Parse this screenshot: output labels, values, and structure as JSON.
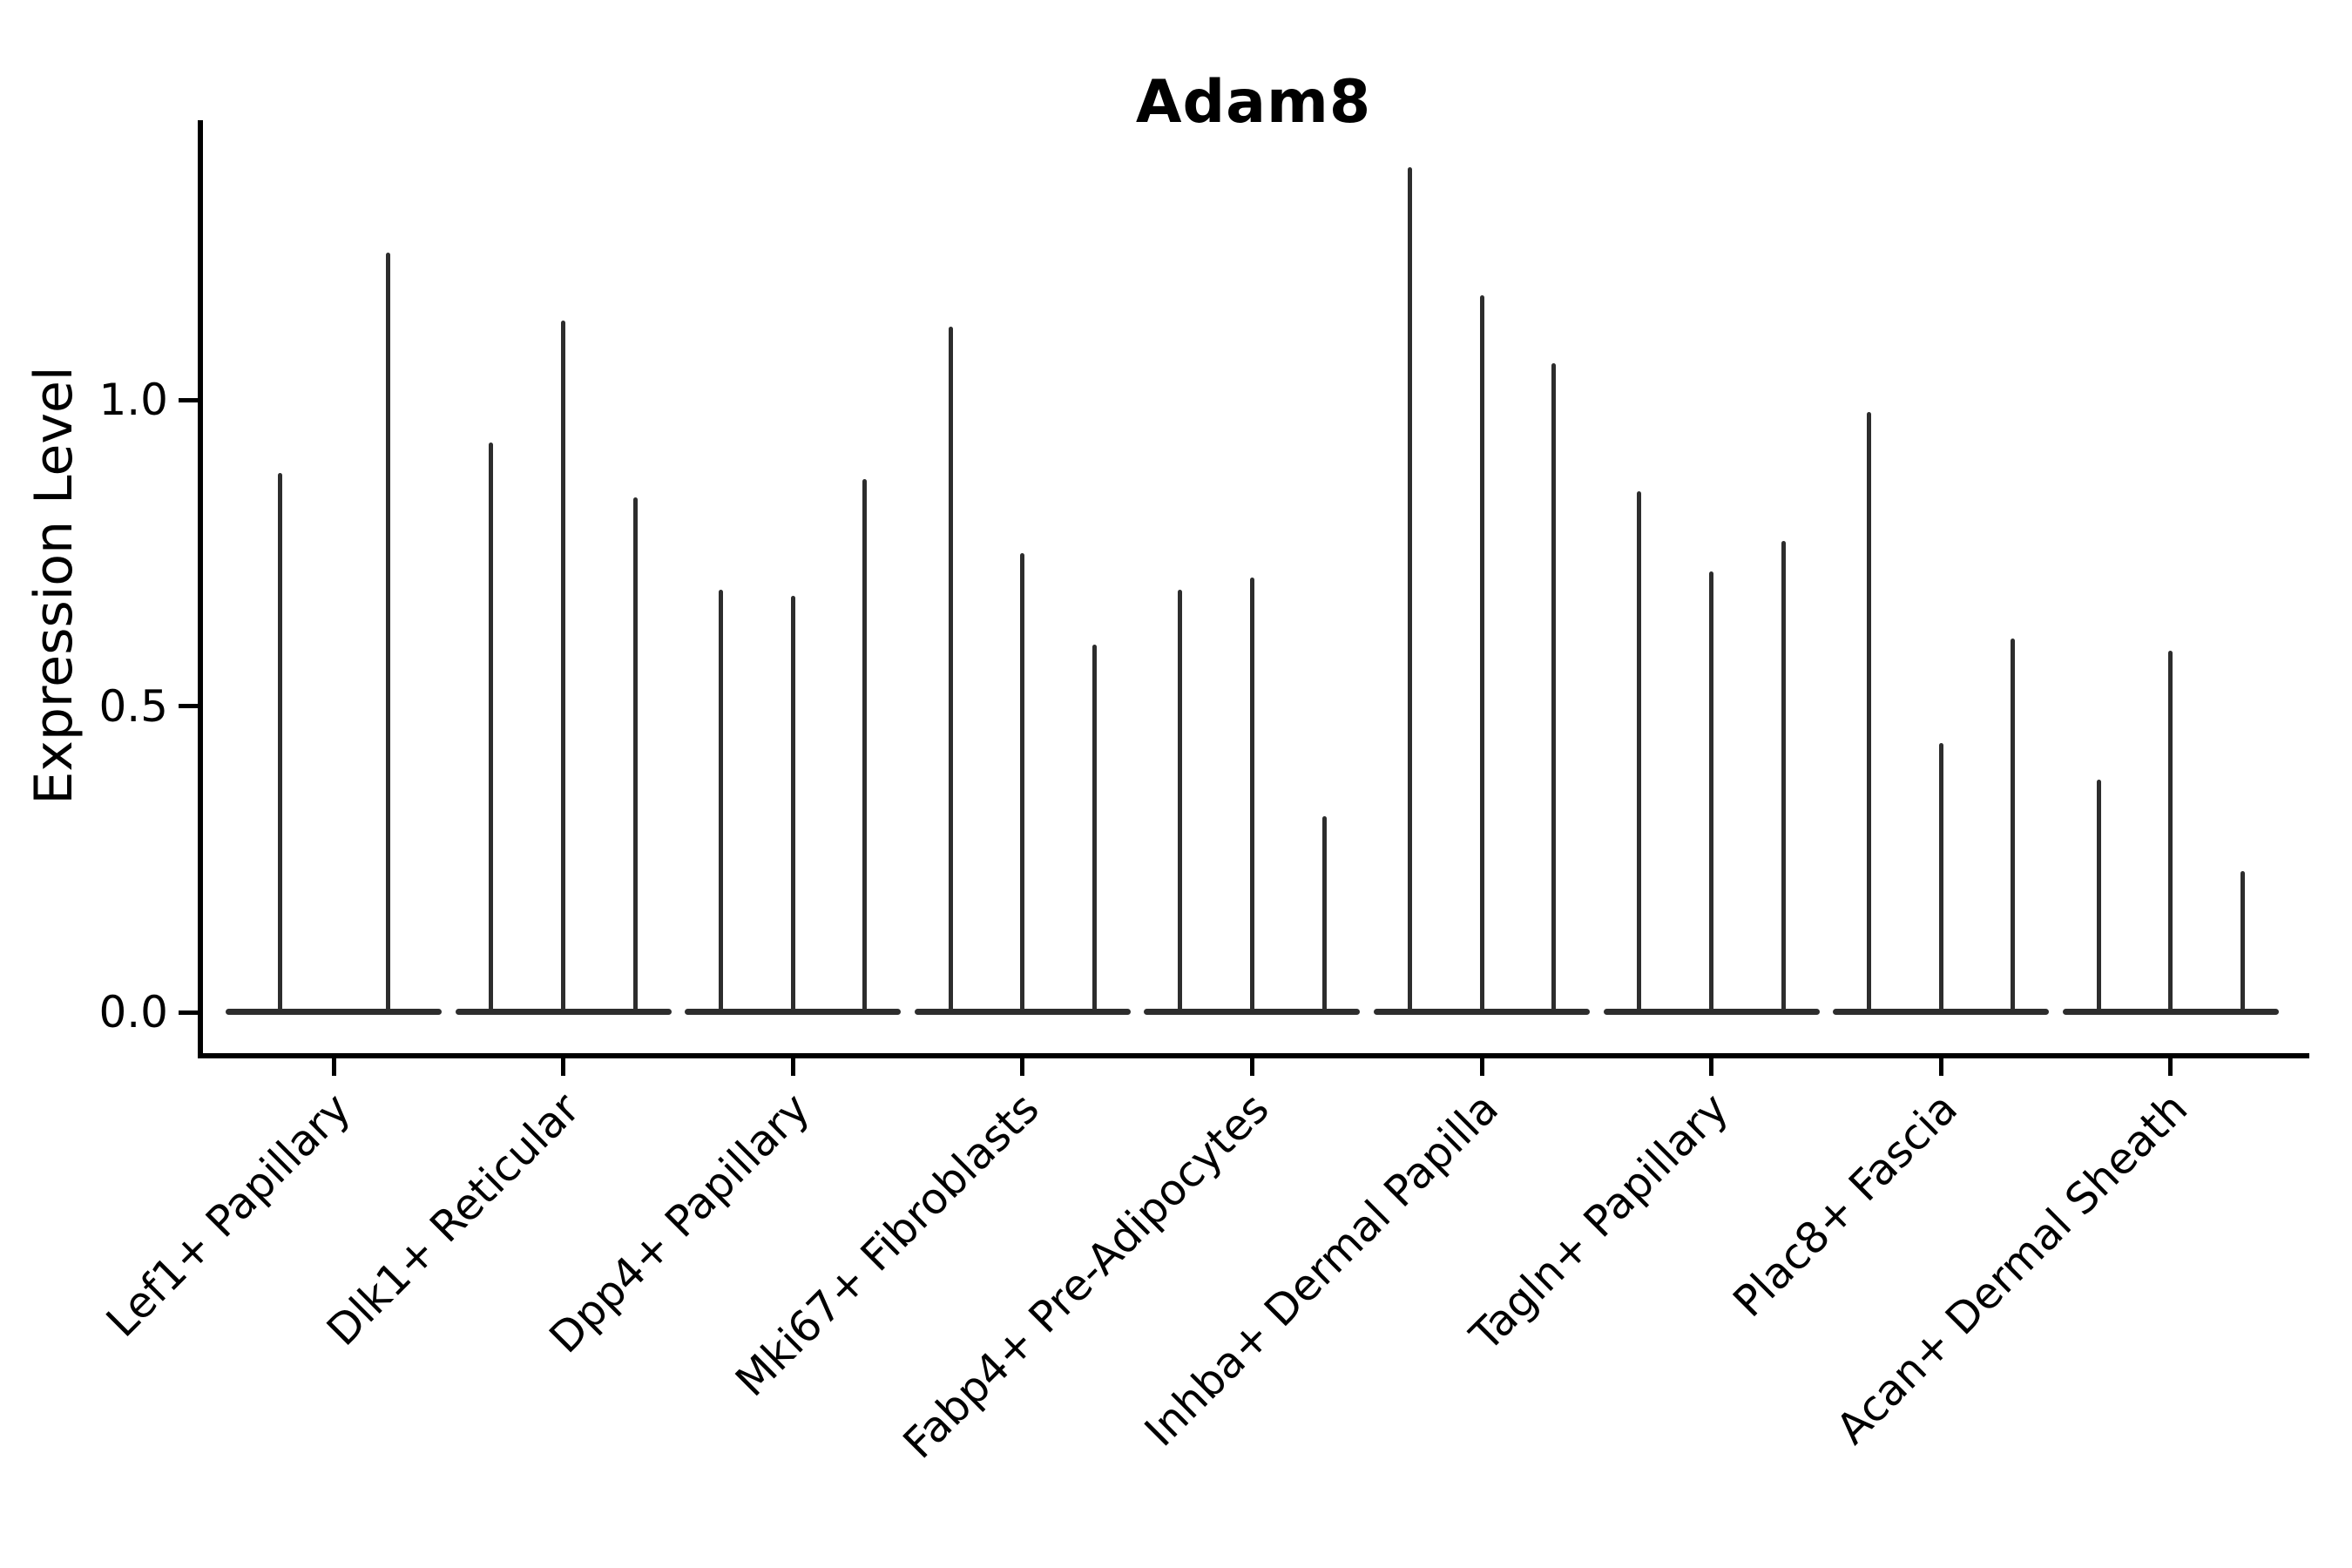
{
  "title": "Adam8",
  "y_axis": {
    "label": "Expression Level",
    "tick_labels": [
      "0.0",
      "0.5",
      "1.0"
    ]
  },
  "colors": {
    "violin": "#2d2d2d",
    "axis": "#000000",
    "text": "#000000"
  },
  "chart_data": {
    "type": "violin",
    "title": "Adam8",
    "xlabel": "",
    "ylabel": "Expression Level",
    "ylim": [
      -0.07,
      1.45
    ],
    "yticks": [
      0.0,
      0.5,
      1.0
    ],
    "grid": false,
    "legend": false,
    "orientation": "vertical",
    "description": "Narrow spike-shaped violins; each violin has its mass at 0 with a thin spike rising to its maximum expression value.",
    "categories": [
      "Lef1+ Papillary",
      "Dlk1+ Reticular",
      "Dpp4+ Papillary",
      "Mki67+ Fibroblasts",
      "Fabp4+ Pre-Adipocytes",
      "Inhba+ Dermal Papilla",
      "Tagln+ Papillary",
      "Plac8+ Fascia",
      "Acan+ Dermal Sheath"
    ],
    "groups": [
      {
        "category": "Lef1+ Papillary",
        "violin_maxima": [
          0.88,
          1.24
        ]
      },
      {
        "category": "Dlk1+ Reticular",
        "violin_maxima": [
          0.93,
          1.13,
          0.84
        ]
      },
      {
        "category": "Dpp4+ Papillary",
        "violin_maxima": [
          0.69,
          0.68,
          0.87
        ]
      },
      {
        "category": "Mki67+ Fibroblasts",
        "violin_maxima": [
          1.12,
          0.75,
          0.6
        ]
      },
      {
        "category": "Fabp4+ Pre-Adipocytes",
        "violin_maxima": [
          0.69,
          0.71,
          0.32
        ]
      },
      {
        "category": "Inhba+ Dermal Papilla",
        "violin_maxima": [
          1.38,
          1.17,
          1.06
        ]
      },
      {
        "category": "Tagln+ Papillary",
        "violin_maxima": [
          0.85,
          0.72,
          0.77
        ]
      },
      {
        "category": "Plac8+ Fascia",
        "violin_maxima": [
          0.98,
          0.44,
          0.61
        ]
      },
      {
        "category": "Acan+ Dermal Sheath",
        "violin_maxima": [
          0.38,
          0.59,
          0.23
        ]
      }
    ]
  }
}
